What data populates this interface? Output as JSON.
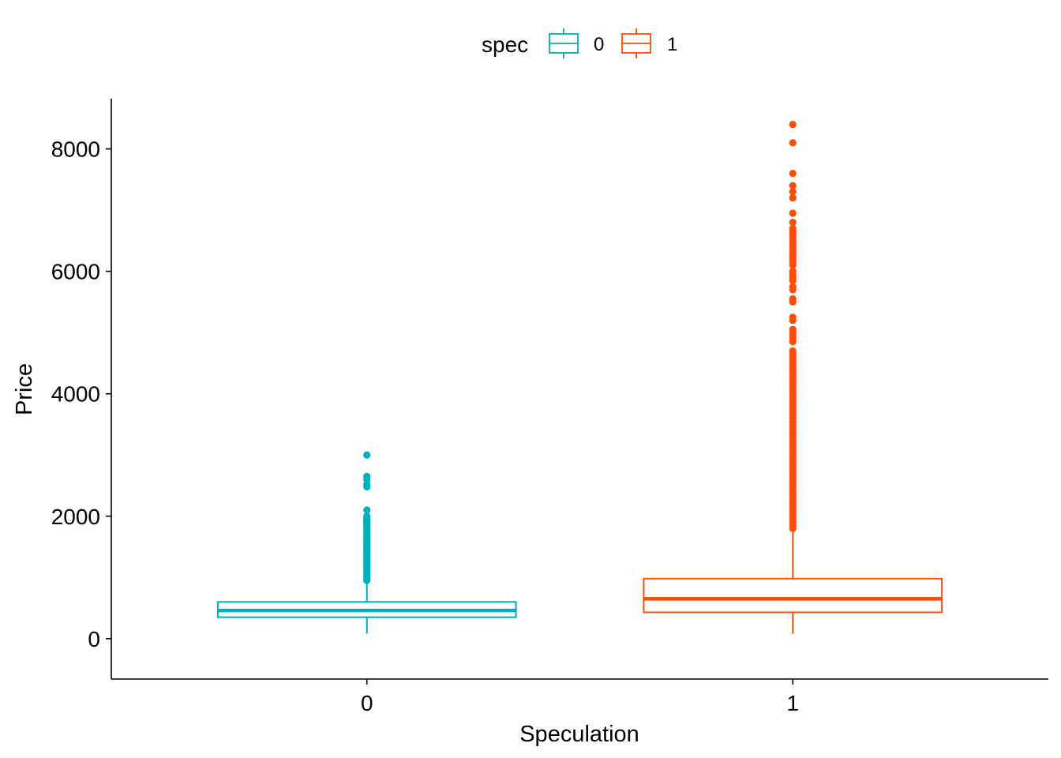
{
  "chart_data": {
    "type": "boxplot",
    "xlabel": "Speculation",
    "ylabel": "Price",
    "ylim": [
      -660,
      8820
    ],
    "yticks": [
      0,
      2000,
      4000,
      6000,
      8000
    ],
    "categories": [
      "0",
      "1"
    ],
    "legend": {
      "title": "spec",
      "position": "top",
      "entries": [
        "0",
        "1"
      ]
    },
    "colors": {
      "0": "#00AFBB",
      "1": "#FC4E07"
    },
    "grid": false,
    "series": [
      {
        "category": "0",
        "whisker_low": 80,
        "q1": 350,
        "median": 460,
        "q3": 600,
        "whisker_high": 930,
        "outliers": [
          950,
          980,
          1010,
          1040,
          1070,
          1100,
          1130,
          1160,
          1190,
          1220,
          1250,
          1280,
          1310,
          1340,
          1370,
          1400,
          1430,
          1460,
          1490,
          1520,
          1550,
          1580,
          1610,
          1640,
          1670,
          1700,
          1730,
          1760,
          1790,
          1820,
          1850,
          1880,
          1910,
          1940,
          1970,
          2000,
          2100,
          2480,
          2520,
          2600,
          2650,
          3000
        ]
      },
      {
        "category": "1",
        "whisker_low": 80,
        "q1": 430,
        "median": 650,
        "q3": 980,
        "whisker_high": 1780,
        "outliers": [
          1800,
          1850,
          1900,
          1950,
          2000,
          2050,
          2100,
          2150,
          2200,
          2250,
          2300,
          2350,
          2400,
          2450,
          2500,
          2550,
          2600,
          2650,
          2700,
          2750,
          2800,
          2850,
          2900,
          2950,
          3000,
          3050,
          3100,
          3150,
          3200,
          3250,
          3300,
          3350,
          3400,
          3450,
          3500,
          3550,
          3600,
          3650,
          3700,
          3750,
          3800,
          3850,
          3900,
          3950,
          4000,
          4050,
          4100,
          4150,
          4200,
          4250,
          4300,
          4350,
          4400,
          4450,
          4500,
          4550,
          4600,
          4650,
          4700,
          4850,
          4900,
          4950,
          5000,
          5050,
          5200,
          5250,
          5500,
          5550,
          5700,
          5750,
          5850,
          5900,
          5950,
          6000,
          6100,
          6150,
          6200,
          6250,
          6300,
          6350,
          6400,
          6450,
          6500,
          6550,
          6600,
          6650,
          6700,
          6800,
          6950,
          7200,
          7300,
          7400,
          7600,
          8100,
          8400
        ]
      }
    ]
  }
}
